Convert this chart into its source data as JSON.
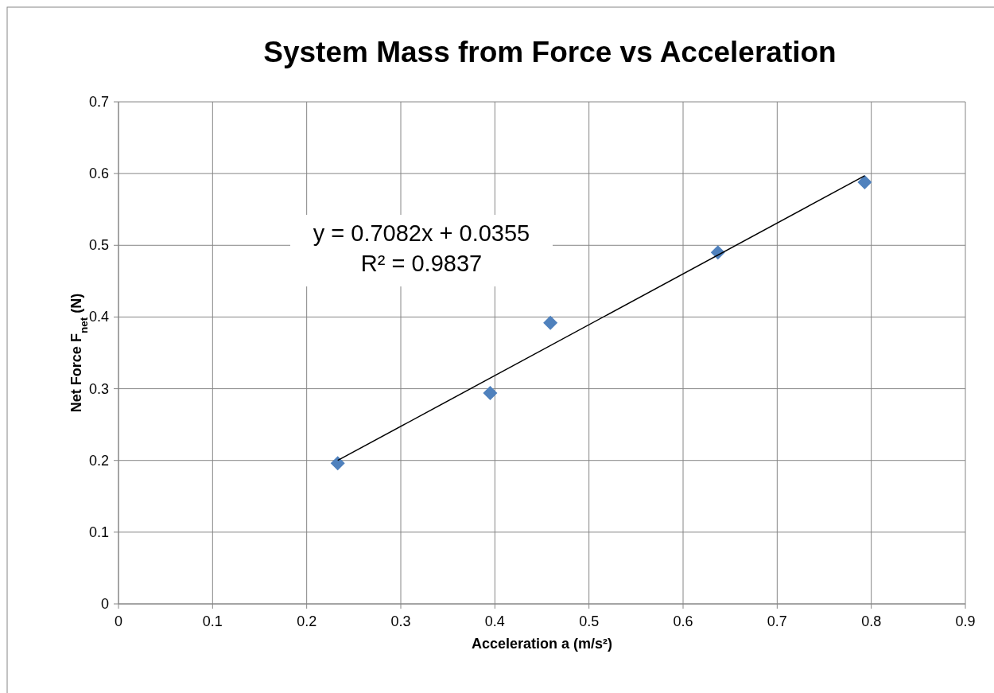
{
  "chart_data": {
    "type": "scatter",
    "title": "System Mass from Force vs Acceleration",
    "xlabel": "Acceleration a (m/s²)",
    "ylabel": "Net Force F$_{net}$ (N)",
    "xlim": [
      0,
      0.9
    ],
    "xticks": [
      0,
      0.1,
      0.2,
      0.3,
      0.4,
      0.5,
      0.6,
      0.7,
      0.8,
      0.9
    ],
    "ylim": [
      0,
      0.7
    ],
    "yticks": [
      0,
      0.1,
      0.2,
      0.3,
      0.4,
      0.5,
      0.6,
      0.7
    ],
    "grid": true,
    "series": [
      {
        "color": "#4f81bd",
        "marker": "diamond",
        "x": [
          0.233,
          0.395,
          0.459,
          0.637,
          0.793
        ],
        "values": [
          0.196,
          0.294,
          0.392,
          0.49,
          0.588
        ]
      },
      {
        "type": "line",
        "color": "#000000",
        "marker": "none",
        "line_style": "solid",
        "x": [
          0.233,
          0.793
        ],
        "values": [
          0.2,
          0.597
        ]
      }
    ],
    "annotations": [
      "y = 0.7082x + 0.0355",
      "R² = 0.9837"
    ]
  }
}
